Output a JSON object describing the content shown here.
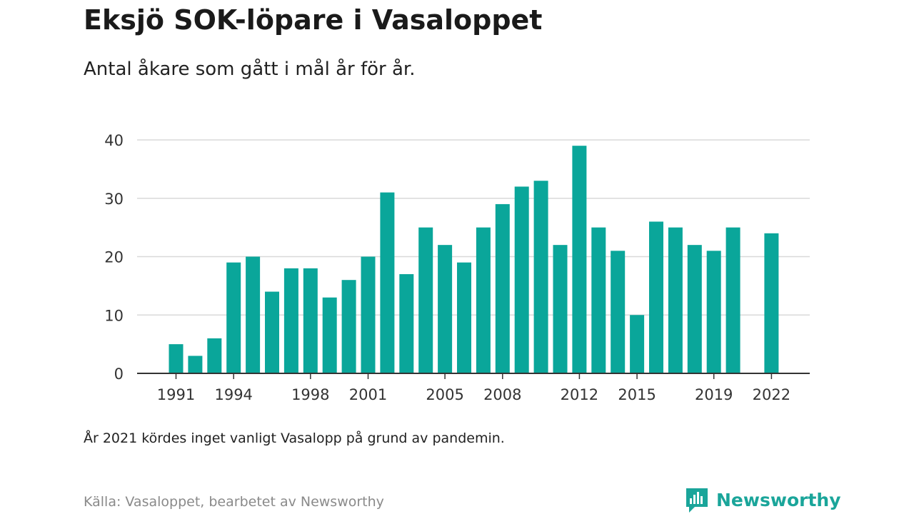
{
  "title": "Eksjö SOK-löpare i Vasaloppet",
  "subtitle": "Antal åkare som gått i mål år för år.",
  "note": "År 2021 kördes inget vanligt Vasalopp på grund av pandemin.",
  "source": "Källa: Vasaloppet, bearbetet av Newsworthy",
  "brand": {
    "name": "Newsworthy",
    "icon": "newsworthy-logo-icon"
  },
  "colors": {
    "bar": "#0aa69a",
    "grid": "#d9d9d9",
    "axis": "#333333",
    "brand": "#1aa59a"
  },
  "chart_data": {
    "type": "bar",
    "categories": [
      1991,
      1992,
      1993,
      1994,
      1995,
      1996,
      1997,
      1998,
      1999,
      2000,
      2001,
      2002,
      2003,
      2004,
      2005,
      2006,
      2007,
      2008,
      2009,
      2010,
      2011,
      2012,
      2013,
      2014,
      2015,
      2016,
      2017,
      2018,
      2019,
      2020,
      2021,
      2022
    ],
    "values": [
      5,
      3,
      6,
      19,
      20,
      14,
      18,
      18,
      13,
      16,
      20,
      31,
      17,
      25,
      22,
      19,
      25,
      29,
      32,
      33,
      22,
      39,
      25,
      21,
      10,
      26,
      25,
      22,
      21,
      25,
      null,
      24
    ],
    "x_tick_labels": [
      "1991",
      "1994",
      "1998",
      "2001",
      "2005",
      "2008",
      "2012",
      "2015",
      "2019",
      "2022"
    ],
    "y_ticks": [
      0,
      10,
      20,
      30,
      40
    ],
    "ylim": [
      0,
      40
    ],
    "grid": true
  }
}
